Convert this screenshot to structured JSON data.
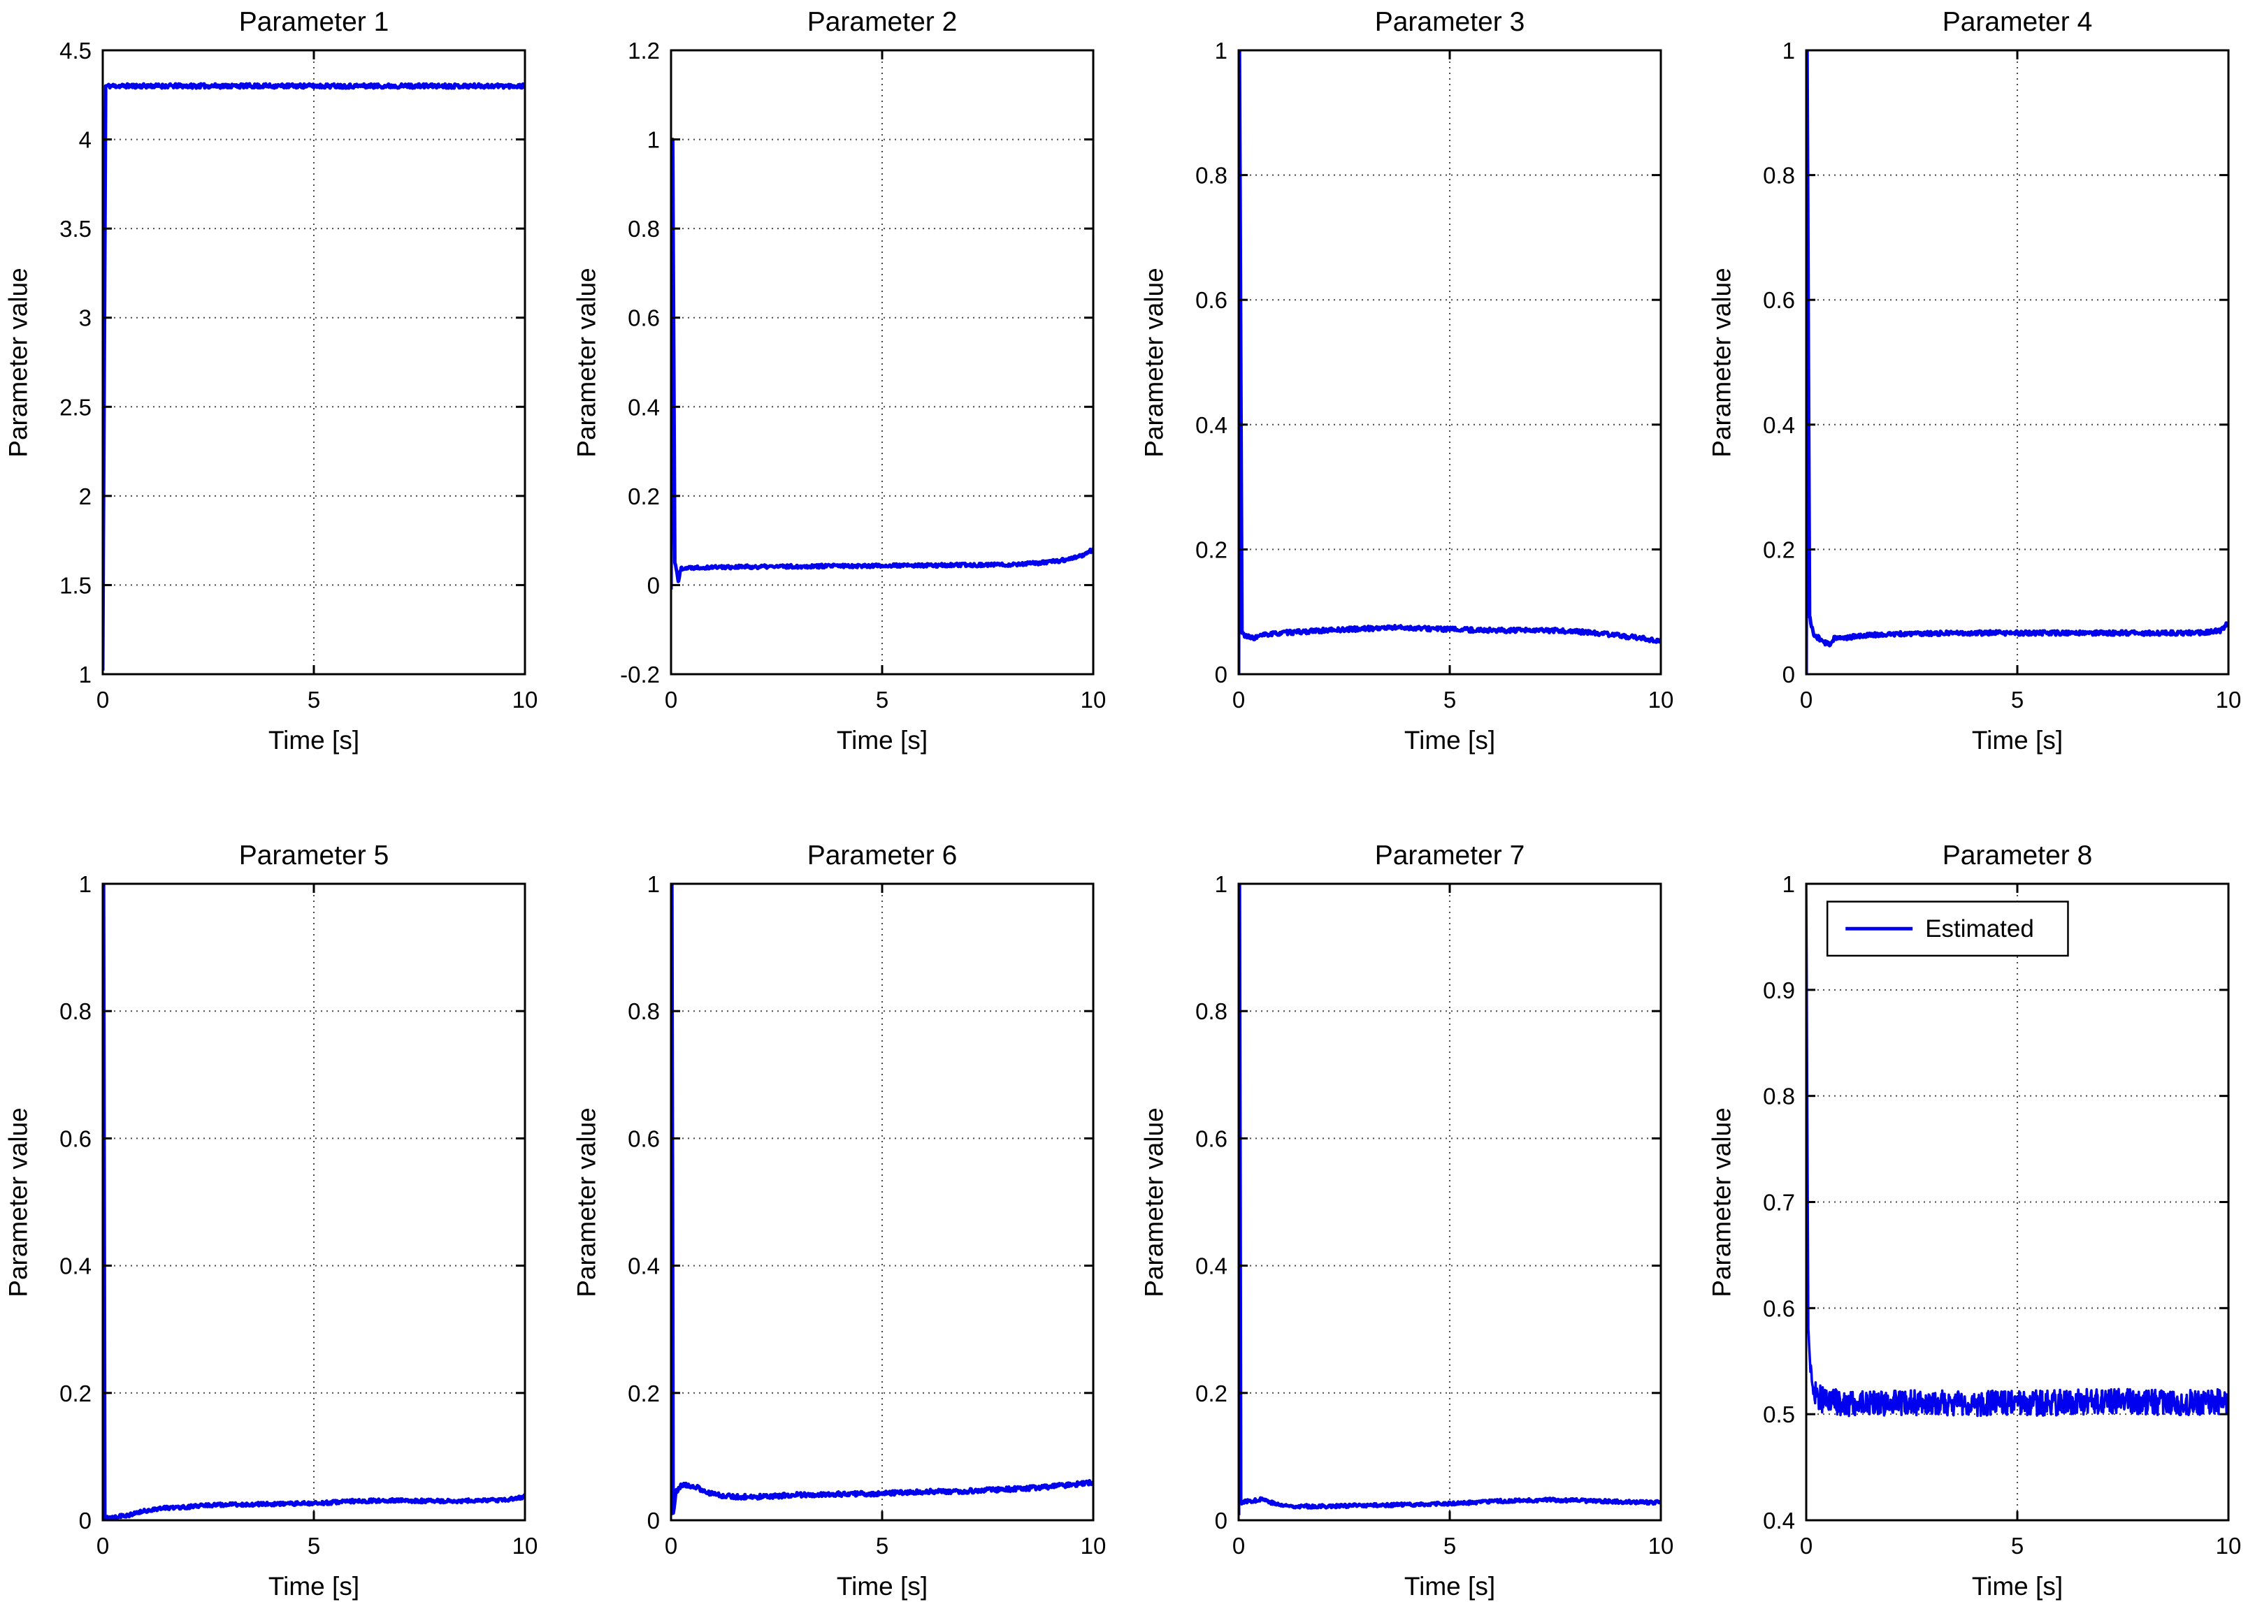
{
  "figure": {
    "background": "#ffffff",
    "line_color": "#0000ee",
    "grid_color": "#4a4a4a",
    "axis_color": "#000000",
    "legend_label": "Estimated"
  },
  "chart_data": [
    {
      "type": "line",
      "title": "Parameter 1",
      "xlabel": "Time [s]",
      "ylabel": "Parameter value",
      "xlim": [
        0,
        10
      ],
      "ylim": [
        1,
        4.5
      ],
      "xticks": {
        "values": [
          0,
          5,
          10
        ],
        "labels": [
          "0",
          "5",
          "10"
        ]
      },
      "yticks": {
        "values": [
          1,
          1.5,
          2,
          2.5,
          3,
          3.5,
          4,
          4.5
        ],
        "labels": [
          "1",
          "1.5",
          "2",
          "2.5",
          "3",
          "3.5",
          "4",
          "4.5"
        ]
      },
      "grid": true,
      "legend": null,
      "series": [
        {
          "name": "Estimated",
          "settle_value": 4.3,
          "keypoints": [
            [
              0,
              1.02
            ],
            [
              0.07,
              4.3
            ],
            [
              10,
              4.3
            ]
          ],
          "noise_amp": 0.012,
          "noise_seed": 11,
          "samples": 650
        }
      ]
    },
    {
      "type": "line",
      "title": "Parameter 2",
      "xlabel": "Time [s]",
      "ylabel": "Parameter value",
      "xlim": [
        0,
        10
      ],
      "ylim": [
        -0.2,
        1.2
      ],
      "xticks": {
        "values": [
          0,
          5,
          10
        ],
        "labels": [
          "0",
          "5",
          "10"
        ]
      },
      "yticks": {
        "values": [
          -0.2,
          0,
          0.2,
          0.4,
          0.6,
          0.8,
          1,
          1.2
        ],
        "labels": [
          "-0.2",
          "0",
          "0.2",
          "0.4",
          "0.6",
          "0.8",
          "1",
          "1.2"
        ]
      },
      "grid": true,
      "legend": null,
      "series": [
        {
          "name": "Estimated",
          "settle_value": 0.04,
          "keypoints": [
            [
              0,
              -0.01
            ],
            [
              0.04,
              1.0
            ],
            [
              0.09,
              0.05
            ],
            [
              0.13,
              0.035
            ],
            [
              0.17,
              0.008
            ],
            [
              0.24,
              0.038
            ],
            [
              0.6,
              0.04
            ],
            [
              2,
              0.041
            ],
            [
              4,
              0.043
            ],
            [
              6,
              0.044
            ],
            [
              8,
              0.046
            ],
            [
              8.8,
              0.05
            ],
            [
              9.3,
              0.056
            ],
            [
              9.7,
              0.065
            ],
            [
              10,
              0.08
            ]
          ],
          "noise_amp": 0.004,
          "noise_seed": 22,
          "samples": 560
        }
      ]
    },
    {
      "type": "line",
      "title": "Parameter 3",
      "xlabel": "Time [s]",
      "ylabel": "Parameter value",
      "xlim": [
        0,
        10
      ],
      "ylim": [
        0,
        1
      ],
      "xticks": {
        "values": [
          0,
          5,
          10
        ],
        "labels": [
          "0",
          "5",
          "10"
        ]
      },
      "yticks": {
        "values": [
          0,
          0.2,
          0.4,
          0.6,
          0.8,
          1
        ],
        "labels": [
          "0",
          "0.2",
          "0.4",
          "0.6",
          "0.8",
          "1"
        ]
      },
      "grid": true,
      "legend": null,
      "series": [
        {
          "name": "Estimated",
          "settle_value": 0.07,
          "keypoints": [
            [
              0,
              0.0
            ],
            [
              0.02,
              1.0
            ],
            [
              0.08,
              0.066
            ],
            [
              0.2,
              0.06
            ],
            [
              0.35,
              0.058
            ],
            [
              0.6,
              0.063
            ],
            [
              1,
              0.066
            ],
            [
              2,
              0.07
            ],
            [
              3,
              0.073
            ],
            [
              3.7,
              0.075
            ],
            [
              4.5,
              0.073
            ],
            [
              5.5,
              0.071
            ],
            [
              6.5,
              0.07
            ],
            [
              7.5,
              0.07
            ],
            [
              8.3,
              0.067
            ],
            [
              9,
              0.062
            ],
            [
              9.6,
              0.057
            ],
            [
              10,
              0.053
            ]
          ],
          "noise_amp": 0.0035,
          "noise_seed": 33,
          "samples": 560
        }
      ]
    },
    {
      "type": "line",
      "title": "Parameter 4",
      "xlabel": "Time [s]",
      "ylabel": "Parameter value",
      "xlim": [
        0,
        10
      ],
      "ylim": [
        0,
        1
      ],
      "xticks": {
        "values": [
          0,
          5,
          10
        ],
        "labels": [
          "0",
          "5",
          "10"
        ]
      },
      "yticks": {
        "values": [
          0,
          0.2,
          0.4,
          0.6,
          0.8,
          1
        ],
        "labels": [
          "0",
          "0.2",
          "0.4",
          "0.6",
          "0.8",
          "1"
        ]
      },
      "grid": true,
      "legend": null,
      "series": [
        {
          "name": "Estimated",
          "settle_value": 0.065,
          "keypoints": [
            [
              0,
              0.0
            ],
            [
              0.02,
              1.0
            ],
            [
              0.08,
              0.092
            ],
            [
              0.18,
              0.062
            ],
            [
              0.3,
              0.058
            ],
            [
              0.45,
              0.05
            ],
            [
              0.55,
              0.047
            ],
            [
              0.68,
              0.06
            ],
            [
              0.8,
              0.057
            ],
            [
              1,
              0.059
            ],
            [
              1.5,
              0.063
            ],
            [
              2.5,
              0.065
            ],
            [
              4,
              0.066
            ],
            [
              6,
              0.066
            ],
            [
              8,
              0.066
            ],
            [
              9,
              0.066
            ],
            [
              9.5,
              0.067
            ],
            [
              9.8,
              0.07
            ],
            [
              10,
              0.082
            ]
          ],
          "noise_amp": 0.0035,
          "noise_seed": 44,
          "samples": 560
        }
      ]
    },
    {
      "type": "line",
      "title": "Parameter 5",
      "xlabel": "Time [s]",
      "ylabel": "Parameter value",
      "xlim": [
        0,
        10
      ],
      "ylim": [
        0,
        1
      ],
      "xticks": {
        "values": [
          0,
          5,
          10
        ],
        "labels": [
          "0",
          "5",
          "10"
        ]
      },
      "yticks": {
        "values": [
          0,
          0.2,
          0.4,
          0.6,
          0.8,
          1
        ],
        "labels": [
          "0",
          "0.2",
          "0.4",
          "0.6",
          "0.8",
          "1"
        ]
      },
      "grid": true,
      "legend": null,
      "series": [
        {
          "name": "Estimated",
          "settle_value": 0.03,
          "keypoints": [
            [
              0,
              0.0
            ],
            [
              0.02,
              1.0
            ],
            [
              0.05,
              0.004
            ],
            [
              0.3,
              0.006
            ],
            [
              0.7,
              0.009
            ],
            [
              0.9,
              0.013
            ],
            [
              1.1,
              0.016
            ],
            [
              1.4,
              0.019
            ],
            [
              2,
              0.021
            ],
            [
              2.6,
              0.024
            ],
            [
              3.5,
              0.025
            ],
            [
              4.5,
              0.026
            ],
            [
              5.2,
              0.027
            ],
            [
              5.8,
              0.03
            ],
            [
              7,
              0.031
            ],
            [
              8,
              0.03
            ],
            [
              9,
              0.031
            ],
            [
              9.5,
              0.032
            ],
            [
              9.8,
              0.034
            ],
            [
              10,
              0.038
            ]
          ],
          "noise_amp": 0.0028,
          "noise_seed": 55,
          "samples": 560
        }
      ]
    },
    {
      "type": "line",
      "title": "Parameter 6",
      "xlabel": "Time [s]",
      "ylabel": "Parameter value",
      "xlim": [
        0,
        10
      ],
      "ylim": [
        0,
        1
      ],
      "xticks": {
        "values": [
          0,
          5,
          10
        ],
        "labels": [
          "0",
          "5",
          "10"
        ]
      },
      "yticks": {
        "values": [
          0,
          0.2,
          0.4,
          0.6,
          0.8,
          1
        ],
        "labels": [
          "0",
          "0.2",
          "0.4",
          "0.6",
          "0.8",
          "1"
        ]
      },
      "grid": true,
      "legend": null,
      "series": [
        {
          "name": "Estimated",
          "settle_value": 0.045,
          "keypoints": [
            [
              0,
              0.008
            ],
            [
              0.02,
              1.0
            ],
            [
              0.05,
              0.012
            ],
            [
              0.12,
              0.045
            ],
            [
              0.2,
              0.053
            ],
            [
              0.35,
              0.055
            ],
            [
              0.5,
              0.054
            ],
            [
              0.6,
              0.052
            ],
            [
              0.75,
              0.046
            ],
            [
              0.95,
              0.042
            ],
            [
              1.2,
              0.039
            ],
            [
              1.6,
              0.037
            ],
            [
              2.2,
              0.037
            ],
            [
              3,
              0.04
            ],
            [
              4,
              0.041
            ],
            [
              5,
              0.042
            ],
            [
              5.6,
              0.044
            ],
            [
              6.2,
              0.045
            ],
            [
              7,
              0.046
            ],
            [
              7.8,
              0.048
            ],
            [
              8.4,
              0.05
            ],
            [
              9,
              0.053
            ],
            [
              9.5,
              0.056
            ],
            [
              9.8,
              0.058
            ],
            [
              10,
              0.06
            ]
          ],
          "noise_amp": 0.0035,
          "noise_seed": 66,
          "samples": 560
        }
      ]
    },
    {
      "type": "line",
      "title": "Parameter 7",
      "xlabel": "Time [s]",
      "ylabel": "Parameter value",
      "xlim": [
        0,
        10
      ],
      "ylim": [
        0,
        1
      ],
      "xticks": {
        "values": [
          0,
          5,
          10
        ],
        "labels": [
          "0",
          "5",
          "10"
        ]
      },
      "yticks": {
        "values": [
          0,
          0.2,
          0.4,
          0.6,
          0.8,
          1
        ],
        "labels": [
          "0",
          "0.2",
          "0.4",
          "0.6",
          "0.8",
          "1"
        ]
      },
      "grid": true,
      "legend": null,
      "series": [
        {
          "name": "Estimated",
          "settle_value": 0.025,
          "keypoints": [
            [
              0,
              0.008
            ],
            [
              0.02,
              1.0
            ],
            [
              0.05,
              0.028
            ],
            [
              0.2,
              0.03
            ],
            [
              0.4,
              0.031
            ],
            [
              0.55,
              0.034
            ],
            [
              0.7,
              0.03
            ],
            [
              0.85,
              0.026
            ],
            [
              1.05,
              0.023
            ],
            [
              1.4,
              0.022
            ],
            [
              2,
              0.022
            ],
            [
              2.8,
              0.023
            ],
            [
              3.6,
              0.024
            ],
            [
              4.4,
              0.025
            ],
            [
              5,
              0.026
            ],
            [
              5.6,
              0.028
            ],
            [
              6.2,
              0.03
            ],
            [
              6.8,
              0.031
            ],
            [
              7.4,
              0.032
            ],
            [
              8,
              0.031
            ],
            [
              8.6,
              0.03
            ],
            [
              9.2,
              0.029
            ],
            [
              9.6,
              0.028
            ],
            [
              10,
              0.028
            ]
          ],
          "noise_amp": 0.0026,
          "noise_seed": 77,
          "samples": 560
        }
      ]
    },
    {
      "type": "line",
      "title": "Parameter 8",
      "xlabel": "Time [s]",
      "ylabel": "Parameter value",
      "xlim": [
        0,
        10
      ],
      "ylim": [
        0.4,
        1
      ],
      "xticks": {
        "values": [
          0,
          5,
          10
        ],
        "labels": [
          "0",
          "5",
          "10"
        ]
      },
      "yticks": {
        "values": [
          0.4,
          0.5,
          0.6,
          0.7,
          0.8,
          0.9,
          1
        ],
        "labels": [
          "0.4",
          "0.5",
          "0.6",
          "0.7",
          "0.8",
          "0.9",
          "1"
        ]
      },
      "grid": true,
      "legend": {
        "label": "Estimated",
        "position": "top-left"
      },
      "series": [
        {
          "name": "Estimated",
          "settle_value": 0.51,
          "keypoints": [
            [
              0,
              1.0
            ],
            [
              0.05,
              0.58
            ],
            [
              0.1,
              0.54
            ],
            [
              0.2,
              0.52
            ],
            [
              0.4,
              0.513
            ],
            [
              1,
              0.51
            ],
            [
              3,
              0.511
            ],
            [
              5,
              0.51
            ],
            [
              7,
              0.512
            ],
            [
              9,
              0.511
            ],
            [
              10,
              0.512
            ]
          ],
          "noise_amp": 0.012,
          "noise_seed": 88,
          "samples": 900
        }
      ]
    }
  ]
}
